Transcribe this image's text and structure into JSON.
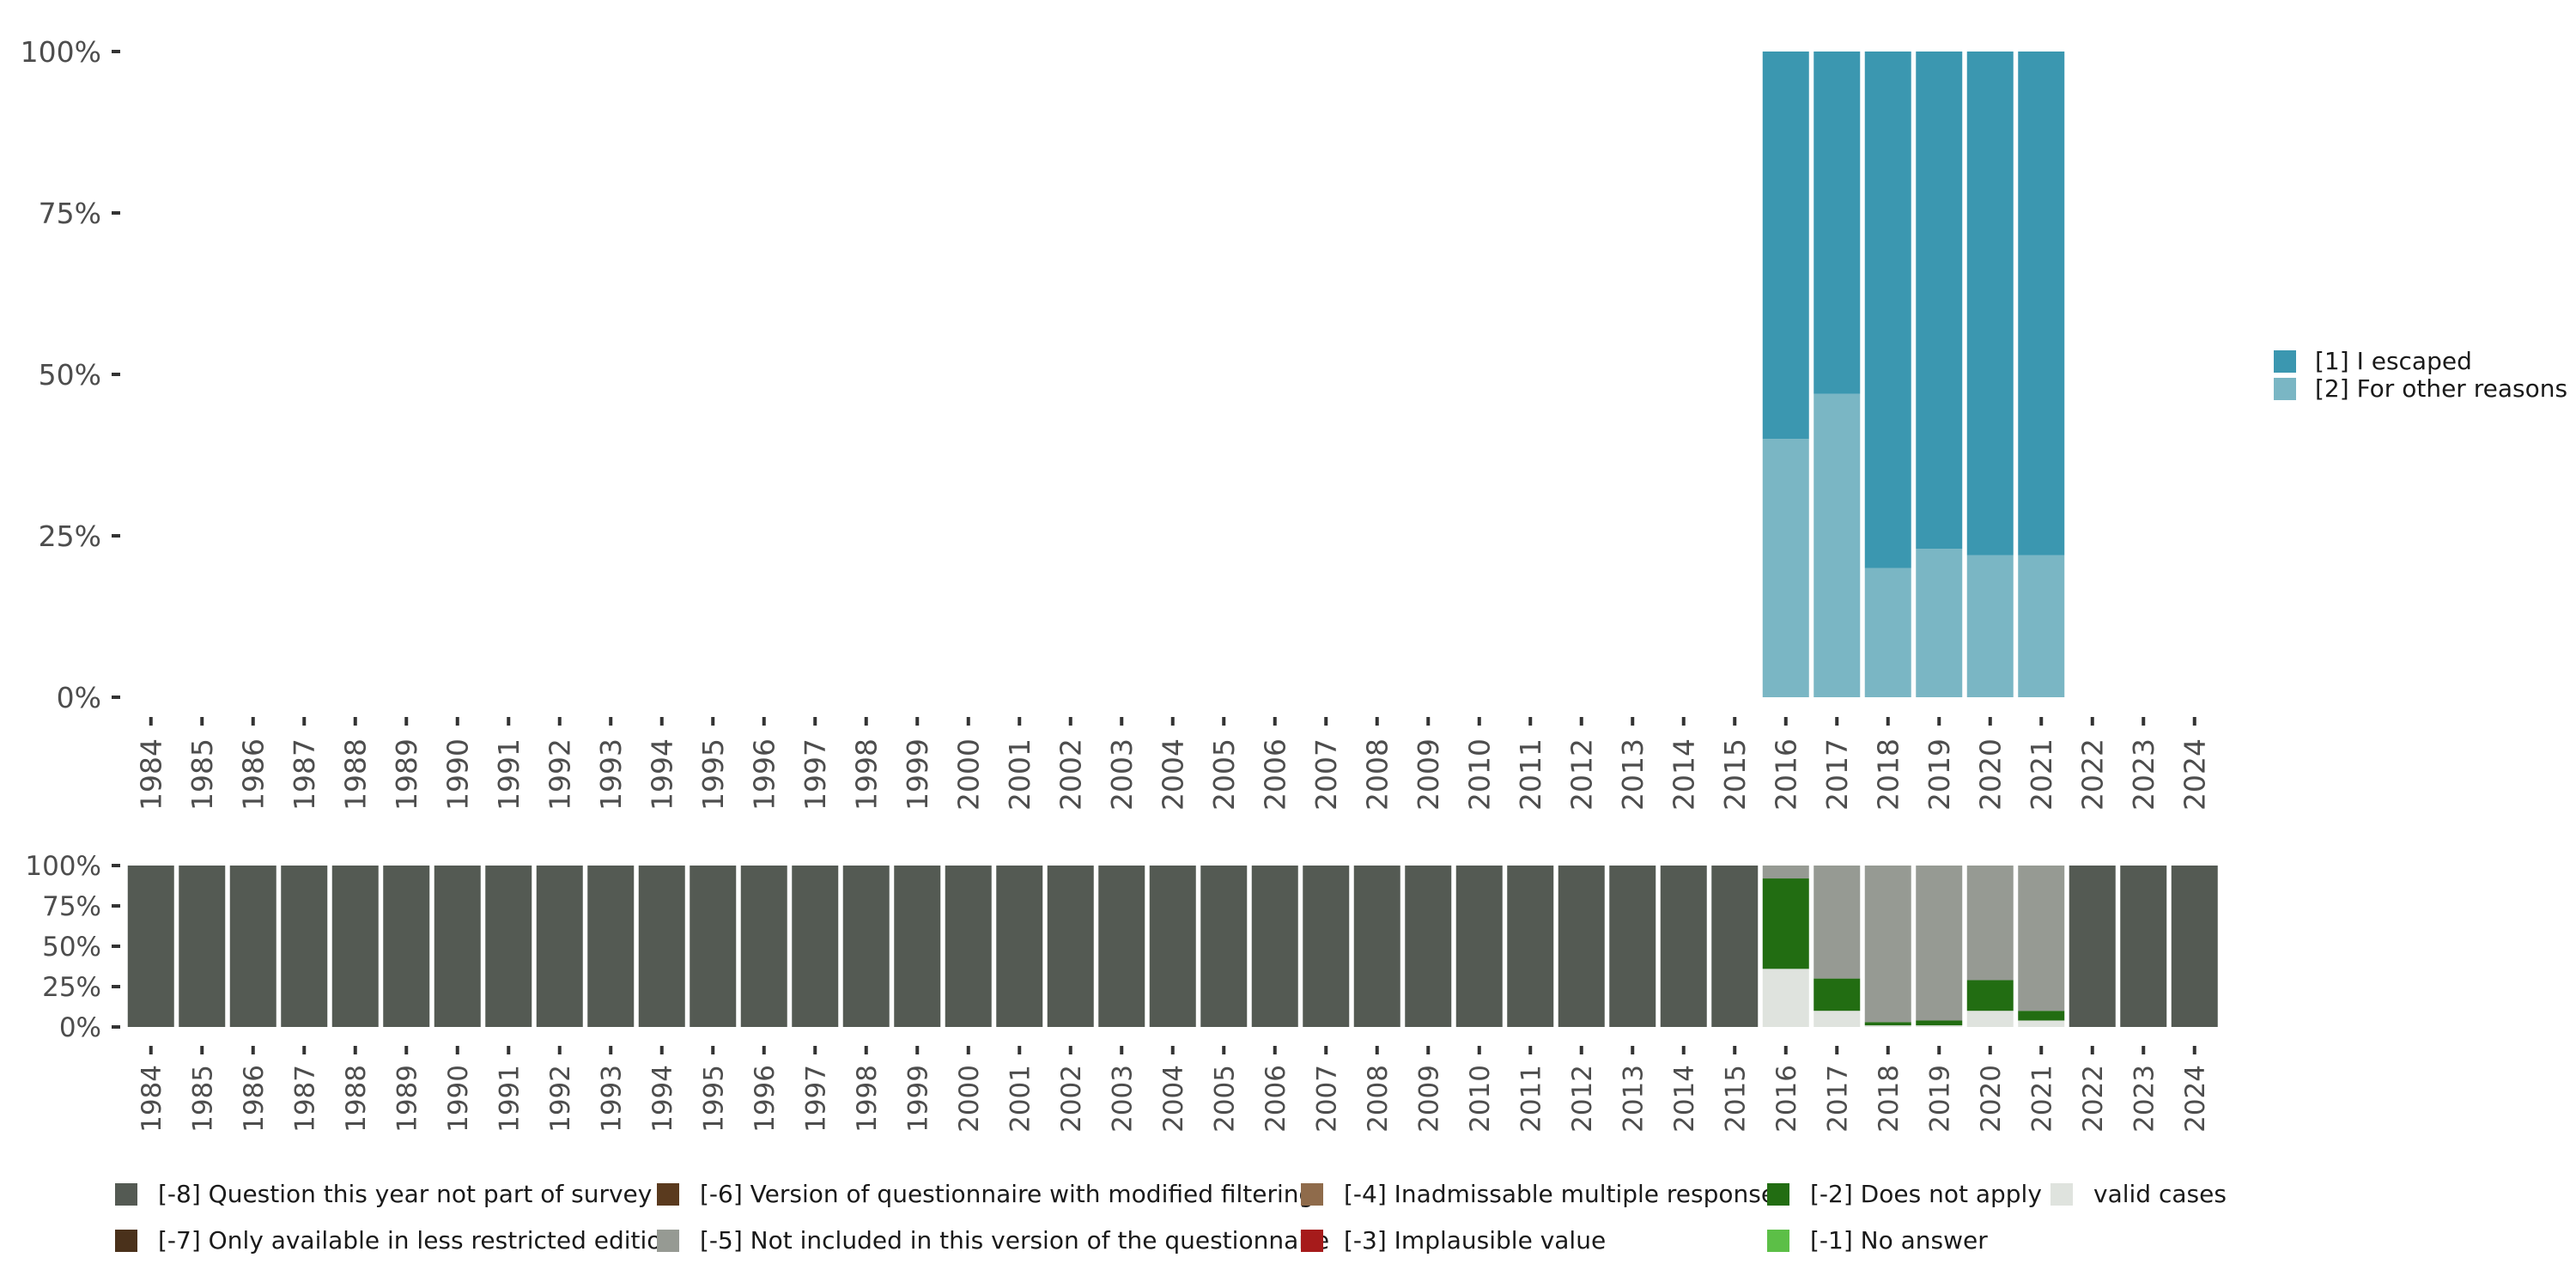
{
  "chart_data": [
    {
      "type": "bar",
      "stacked": true,
      "title": "",
      "xlabel": "",
      "ylabel": "",
      "ylim": [
        0,
        100
      ],
      "yticks": [
        "0%",
        "25%",
        "50%",
        "75%",
        "100%"
      ],
      "categories": [
        "1984",
        "1985",
        "1986",
        "1987",
        "1988",
        "1989",
        "1990",
        "1991",
        "1992",
        "1993",
        "1994",
        "1995",
        "1996",
        "1997",
        "1998",
        "1999",
        "2000",
        "2001",
        "2002",
        "2003",
        "2004",
        "2005",
        "2006",
        "2007",
        "2008",
        "2009",
        "2010",
        "2011",
        "2012",
        "2013",
        "2014",
        "2015",
        "2016",
        "2017",
        "2018",
        "2019",
        "2020",
        "2021",
        "2022",
        "2023",
        "2024"
      ],
      "series": [
        {
          "name": "[2] For other reasons",
          "color": "#7ab6c4",
          "values": {
            "2016": 40,
            "2017": 47,
            "2018": 20,
            "2019": 23,
            "2020": 22,
            "2021": 22
          }
        },
        {
          "name": "[1] I escaped",
          "color": "#3b97b0",
          "values": {
            "2016": 60,
            "2017": 53,
            "2018": 80,
            "2019": 77,
            "2020": 78,
            "2021": 78
          }
        }
      ],
      "legend_position": "right"
    },
    {
      "type": "bar",
      "stacked": true,
      "title": "",
      "xlabel": "",
      "ylabel": "",
      "ylim": [
        0,
        100
      ],
      "yticks": [
        "0%",
        "25%",
        "50%",
        "75%",
        "100%"
      ],
      "categories": [
        "1984",
        "1985",
        "1986",
        "1987",
        "1988",
        "1989",
        "1990",
        "1991",
        "1992",
        "1993",
        "1994",
        "1995",
        "1996",
        "1997",
        "1998",
        "1999",
        "2000",
        "2001",
        "2002",
        "2003",
        "2004",
        "2005",
        "2006",
        "2007",
        "2008",
        "2009",
        "2010",
        "2011",
        "2012",
        "2013",
        "2014",
        "2015",
        "2016",
        "2017",
        "2018",
        "2019",
        "2020",
        "2021",
        "2022",
        "2023",
        "2024"
      ],
      "series": [
        {
          "name": "valid cases",
          "color": "#dfe3de",
          "values": {
            "2016": 36,
            "2017": 10,
            "2018": 1,
            "2019": 1,
            "2020": 10,
            "2021": 4
          }
        },
        {
          "name": "[-2] Does not apply",
          "color": "#226d12",
          "values": {
            "2016": 56,
            "2017": 20,
            "2018": 2,
            "2019": 3,
            "2020": 19,
            "2021": 6
          }
        },
        {
          "name": "[-5] Not included in this version of the questionnaire",
          "color": "#969a93",
          "values": {
            "2016": 8,
            "2017": 70,
            "2018": 97,
            "2019": 96,
            "2020": 71,
            "2021": 90
          }
        },
        {
          "name": "[-8] Question this year not part of survey",
          "color": "#545a53",
          "values": {
            "1984": 100,
            "1985": 100,
            "1986": 100,
            "1987": 100,
            "1988": 100,
            "1989": 100,
            "1990": 100,
            "1991": 100,
            "1992": 100,
            "1993": 100,
            "1994": 100,
            "1995": 100,
            "1996": 100,
            "1997": 100,
            "1998": 100,
            "1999": 100,
            "2000": 100,
            "2001": 100,
            "2002": 100,
            "2003": 100,
            "2004": 100,
            "2005": 100,
            "2006": 100,
            "2007": 100,
            "2008": 100,
            "2009": 100,
            "2010": 100,
            "2011": 100,
            "2012": 100,
            "2013": 100,
            "2014": 100,
            "2015": 100,
            "2022": 100,
            "2023": 100,
            "2024": 100
          }
        }
      ],
      "legend_position": "bottom",
      "legend": [
        {
          "label": "[-8] Question this year not part of survey",
          "color": "#545a53"
        },
        {
          "label": "[-7] Only available in less restricted edition",
          "color": "#4a311b"
        },
        {
          "label": "[-6] Version of questionnaire with modified filtering",
          "color": "#5a3a1e"
        },
        {
          "label": "[-5] Not included in this version of the questionnaire",
          "color": "#969a93"
        },
        {
          "label": "[-4] Inadmissable multiple response",
          "color": "#8f6b4b"
        },
        {
          "label": "[-3] Implausible value",
          "color": "#a61b1b"
        },
        {
          "label": "[-2] Does not apply",
          "color": "#226d12"
        },
        {
          "label": "[-1] No answer",
          "color": "#5cbf47"
        },
        {
          "label": "valid cases",
          "color": "#dfe3de"
        }
      ]
    }
  ]
}
